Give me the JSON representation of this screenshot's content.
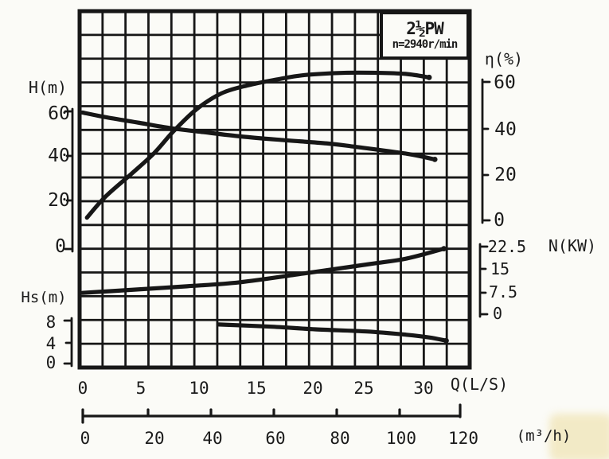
{
  "chart_data": {
    "type": "line",
    "title": "2½PW",
    "subtitle": "n=2940r/min",
    "grid": true,
    "x_axis": {
      "label": "Q(L/S)",
      "ticks": [
        0,
        5,
        10,
        15,
        20,
        25,
        30
      ],
      "range": [
        0,
        34
      ]
    },
    "x_axis_secondary": {
      "label": "(m³/h)",
      "ticks": [
        0,
        20,
        40,
        60,
        80,
        100,
        120
      ],
      "range": [
        0,
        122
      ]
    },
    "y_axes": [
      {
        "id": "H",
        "label": "H(m)",
        "side": "left",
        "ticks": [
          60,
          40,
          20,
          0
        ],
        "range": [
          0,
          60
        ]
      },
      {
        "id": "eta",
        "label": "η(%)",
        "side": "right",
        "ticks": [
          60,
          40,
          20,
          0
        ],
        "range": [
          0,
          65
        ]
      },
      {
        "id": "N",
        "label": "N(KW)",
        "side": "right",
        "ticks": [
          22.5,
          15,
          7.5,
          0
        ],
        "range": [
          0,
          22.5
        ]
      },
      {
        "id": "Hs",
        "label": "Hs(m)",
        "side": "left",
        "ticks": [
          8,
          4,
          0
        ],
        "range": [
          0,
          8
        ]
      }
    ],
    "series": [
      {
        "name": "head-curve-H-Q",
        "axis": "H",
        "points": [
          [
            0,
            59.5
          ],
          [
            2,
            57.5
          ],
          [
            5,
            55
          ],
          [
            8,
            52.5
          ],
          [
            10.5,
            51
          ],
          [
            14,
            49
          ],
          [
            17.5,
            47.5
          ],
          [
            21.5,
            46
          ],
          [
            24,
            44.5
          ],
          [
            28.5,
            41.5
          ],
          [
            31,
            39
          ]
        ]
      },
      {
        "name": "efficiency-curve-eta-Q",
        "axis": "eta",
        "points": [
          [
            0.4,
            1
          ],
          [
            2,
            10
          ],
          [
            4.3,
            20
          ],
          [
            6.3,
            29
          ],
          [
            8,
            38.5
          ],
          [
            10,
            48
          ],
          [
            12.2,
            55
          ],
          [
            14.5,
            58.5
          ],
          [
            17,
            61
          ],
          [
            19.5,
            63
          ],
          [
            23,
            64
          ],
          [
            26,
            64
          ],
          [
            28.5,
            63.5
          ],
          [
            30.5,
            62
          ]
        ]
      },
      {
        "name": "power-curve-N-Q",
        "axis": "N",
        "points": [
          [
            0,
            7.1
          ],
          [
            4.7,
            8.2
          ],
          [
            9.2,
            9.3
          ],
          [
            13.8,
            10.6
          ],
          [
            19.4,
            13.5
          ],
          [
            25.3,
            16.7
          ],
          [
            28.5,
            18.5
          ],
          [
            31.8,
            21.8
          ]
        ]
      },
      {
        "name": "suction-curve-Hs-Q",
        "axis": "Hs",
        "points": [
          [
            12,
            7.3
          ],
          [
            16.5,
            6.9
          ],
          [
            20.5,
            6.4
          ],
          [
            25,
            6
          ],
          [
            28.5,
            5.4
          ],
          [
            30.5,
            4.9
          ],
          [
            32,
            4.3
          ]
        ]
      }
    ],
    "ink_color": "#171717",
    "background_color": "#fbfbf7"
  }
}
